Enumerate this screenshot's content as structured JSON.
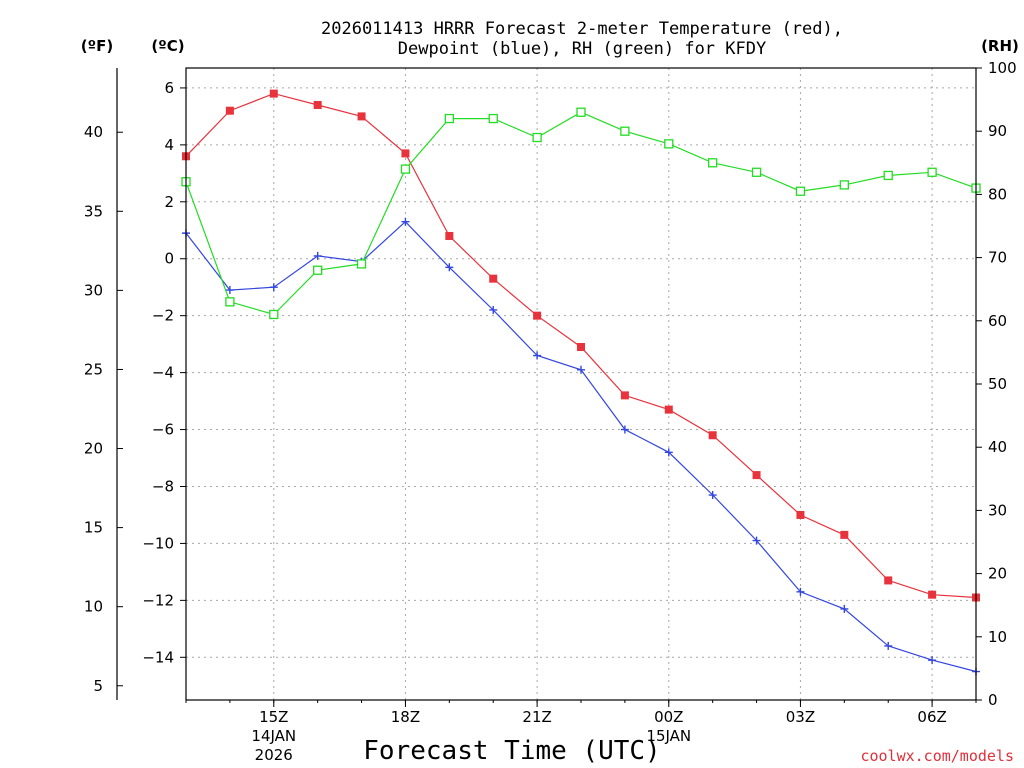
{
  "chart_data": {
    "type": "line",
    "title_line1": "2026011413 HRRR Forecast 2-meter Temperature (red),",
    "title_line2": "Dewpoint (blue), RH (green) for KFDY",
    "xlabel": "Forecast Time (UTC)",
    "credit": "coolwx.com/models",
    "units": {
      "fahrenheit": "(ºF)",
      "celsius": "(ºC)",
      "rh": "(RH)"
    },
    "hours": [
      13,
      14,
      15,
      16,
      17,
      18,
      19,
      20,
      21,
      22,
      23,
      24,
      25,
      26,
      27,
      28,
      29,
      30,
      31
    ],
    "xlim": [
      13,
      31
    ],
    "x_ticks": [
      {
        "hour": 15,
        "label": "15Z",
        "date1": "14JAN",
        "date2": "2026"
      },
      {
        "hour": 18,
        "label": "18Z"
      },
      {
        "hour": 21,
        "label": "21Z"
      },
      {
        "hour": 24,
        "label": "00Z",
        "date1": "15JAN"
      },
      {
        "hour": 27,
        "label": "03Z"
      },
      {
        "hour": 30,
        "label": "06Z"
      }
    ],
    "c_ticks": [
      6,
      4,
      2,
      0,
      -2,
      -4,
      -6,
      -8,
      -10,
      -12,
      -14
    ],
    "c_tick_labels": [
      "6",
      "4",
      "2",
      "0",
      "−2",
      "−4",
      "−6",
      "−8",
      "−10",
      "−12",
      "−14"
    ],
    "f_ticks": [
      40,
      35,
      30,
      25,
      20,
      15,
      10,
      5
    ],
    "f_tick_labels": [
      "40",
      "35",
      "30",
      "25",
      "20",
      "15",
      "10",
      "5"
    ],
    "rh_ticks": [
      100,
      90,
      80,
      70,
      60,
      50,
      40,
      30,
      20,
      10,
      0
    ],
    "rh_tick_labels": [
      "100",
      "90",
      "80",
      "70",
      "60",
      "50",
      "40",
      "30",
      "20",
      "10",
      "0"
    ],
    "c_range": [
      -15.5,
      6.7
    ],
    "rh_range": [
      0,
      100
    ],
    "series": [
      {
        "name": "Temperature",
        "axis": "celsius",
        "color": "#e8323c",
        "marker": "filled-square",
        "values": [
          3.6,
          5.2,
          5.8,
          5.4,
          5.0,
          3.7,
          0.8,
          -0.7,
          -2.0,
          -3.1,
          -4.8,
          -5.3,
          -6.2,
          -7.6,
          -9.0,
          -9.7,
          -11.3,
          -11.8,
          -11.9
        ]
      },
      {
        "name": "Dewpoint",
        "axis": "celsius",
        "color": "#3246e0",
        "marker": "plus",
        "values": [
          0.9,
          -1.1,
          -1.0,
          0.1,
          -0.1,
          1.3,
          -0.3,
          -1.8,
          -3.4,
          -3.9,
          -6.0,
          -6.8,
          -8.3,
          -9.9,
          -11.7,
          -12.3,
          -13.6,
          -14.1,
          -14.5
        ]
      },
      {
        "name": "RH",
        "axis": "rh",
        "color": "#22dd22",
        "marker": "open-square",
        "values": [
          82,
          63,
          61,
          68,
          69,
          84,
          92,
          92,
          89,
          93,
          90,
          88,
          85,
          83.5,
          80.5,
          81.5,
          83,
          83.5,
          81
        ]
      }
    ]
  }
}
